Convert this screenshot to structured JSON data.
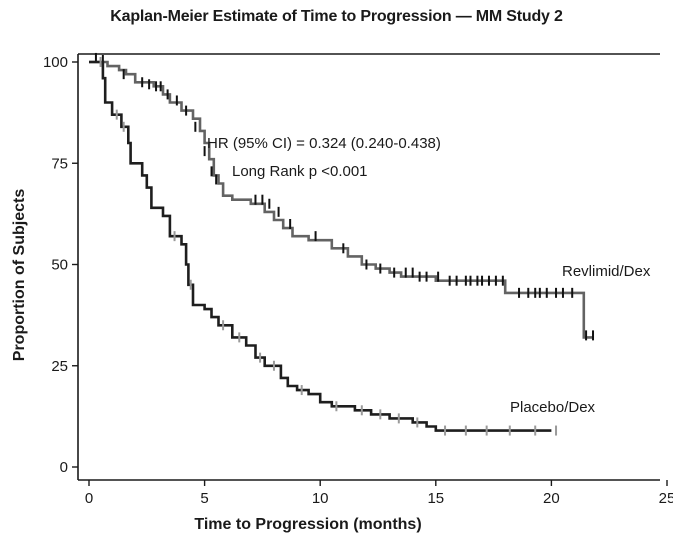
{
  "chart_data": {
    "type": "line",
    "title": "Kaplan-Meier Estimate of Time to Progression — MM Study 2",
    "xlabel": "Time to Progression (months)",
    "ylabel": "Proportion of Subjects",
    "xlim": [
      -0.5,
      25
    ],
    "ylim": [
      -2,
      102
    ],
    "xticks": [
      0,
      5,
      10,
      15,
      20,
      25
    ],
    "xtick_labels": [
      "0",
      "5",
      "10",
      "15",
      "20",
      "25"
    ],
    "yticks": [
      0,
      25,
      50,
      75,
      100
    ],
    "ytick_labels": [
      "0",
      "25",
      "50",
      "75",
      "100"
    ],
    "grid": false,
    "step": true,
    "annotations": {
      "hr": "HR (95% CI) = 0.324 (0.240-0.438)",
      "logrank": "Long Rank p <0.001"
    },
    "series": [
      {
        "name": "Revlimid/Dex",
        "color": "#636363",
        "censor_color": "#111111",
        "x": [
          0,
          0.8,
          1.3,
          1.6,
          2.0,
          2.8,
          3.2,
          3.5,
          4.0,
          4.5,
          4.8,
          5.0,
          5.2,
          5.4,
          5.6,
          5.8,
          6.2,
          7.0,
          7.6,
          8.0,
          8.4,
          8.8,
          9.5,
          10.5,
          11.2,
          11.8,
          12.4,
          13.0,
          13.5,
          14.2,
          15.0,
          15.8,
          18.0,
          21.0,
          21.4,
          21.8
        ],
        "y": [
          100,
          99,
          98,
          97,
          95,
          94,
          92,
          90,
          88,
          86,
          83,
          80,
          76,
          72,
          70,
          67,
          66,
          65,
          63,
          61,
          59,
          57,
          56,
          54,
          52,
          50,
          49,
          48,
          47,
          47,
          46,
          46,
          43,
          43,
          32,
          32
        ],
        "censors": [
          [
            0.3,
            101
          ],
          [
            0.6,
            100.5
          ],
          [
            1.5,
            97
          ],
          [
            2.3,
            95
          ],
          [
            2.6,
            94.5
          ],
          [
            2.9,
            94
          ],
          [
            3.1,
            94
          ],
          [
            3.4,
            92
          ],
          [
            3.8,
            90.5
          ],
          [
            4.2,
            88
          ],
          [
            4.6,
            84
          ],
          [
            5.0,
            78
          ],
          [
            5.3,
            73
          ],
          [
            5.5,
            71
          ],
          [
            7.2,
            66
          ],
          [
            7.5,
            66
          ],
          [
            7.8,
            65
          ],
          [
            8.2,
            63
          ],
          [
            8.7,
            60
          ],
          [
            9.8,
            57
          ],
          [
            11.0,
            54
          ],
          [
            12.0,
            50
          ],
          [
            12.6,
            49
          ],
          [
            13.2,
            48
          ],
          [
            13.7,
            48
          ],
          [
            14.0,
            48
          ],
          [
            14.3,
            47
          ],
          [
            14.6,
            47
          ],
          [
            15.1,
            47
          ],
          [
            15.6,
            46
          ],
          [
            15.9,
            46
          ],
          [
            16.3,
            46
          ],
          [
            16.5,
            46
          ],
          [
            16.8,
            46
          ],
          [
            17.0,
            46
          ],
          [
            17.3,
            46
          ],
          [
            17.6,
            46
          ],
          [
            17.9,
            46
          ],
          [
            18.6,
            43
          ],
          [
            19.0,
            43
          ],
          [
            19.3,
            43
          ],
          [
            19.5,
            43
          ],
          [
            19.8,
            43
          ],
          [
            20.2,
            43
          ],
          [
            20.5,
            43
          ],
          [
            20.9,
            43
          ],
          [
            21.5,
            32.5
          ],
          [
            21.8,
            32.5
          ]
        ]
      },
      {
        "name": "Placebo/Dex",
        "color": "#1e1e1e",
        "censor_color": "#9a9a9a",
        "x": [
          0,
          0.6,
          0.7,
          1.0,
          1.4,
          1.7,
          1.8,
          2.3,
          2.5,
          2.7,
          3.2,
          3.5,
          4.0,
          4.2,
          4.3,
          4.5,
          5.0,
          5.3,
          5.6,
          6.2,
          6.8,
          7.2,
          7.6,
          8.3,
          8.6,
          9.0,
          9.5,
          10.0,
          10.5,
          11.5,
          12.2,
          13.0,
          14.0,
          14.6,
          15.0,
          20.0
        ],
        "y": [
          100,
          96,
          90,
          87,
          84,
          80,
          75,
          72,
          69,
          64,
          62,
          57,
          55,
          50,
          45,
          40,
          39,
          37,
          35,
          32,
          30,
          27,
          25,
          22,
          20,
          19,
          18,
          16,
          15,
          14,
          13,
          12,
          11,
          10,
          9,
          9
        ],
        "censors": [
          [
            0.5,
            100
          ],
          [
            1.2,
            87
          ],
          [
            1.5,
            84
          ],
          [
            3.7,
            57
          ],
          [
            4.4,
            45
          ],
          [
            5.8,
            35
          ],
          [
            6.5,
            32
          ],
          [
            7.4,
            27
          ],
          [
            8.0,
            25
          ],
          [
            9.2,
            19
          ],
          [
            10.7,
            15
          ],
          [
            11.8,
            14
          ],
          [
            12.6,
            13
          ],
          [
            13.4,
            12
          ],
          [
            14.2,
            11
          ],
          [
            15.4,
            9
          ],
          [
            16.3,
            9
          ],
          [
            17.2,
            9
          ],
          [
            18.2,
            9
          ],
          [
            19.3,
            9
          ],
          [
            20.2,
            9
          ]
        ]
      }
    ]
  }
}
